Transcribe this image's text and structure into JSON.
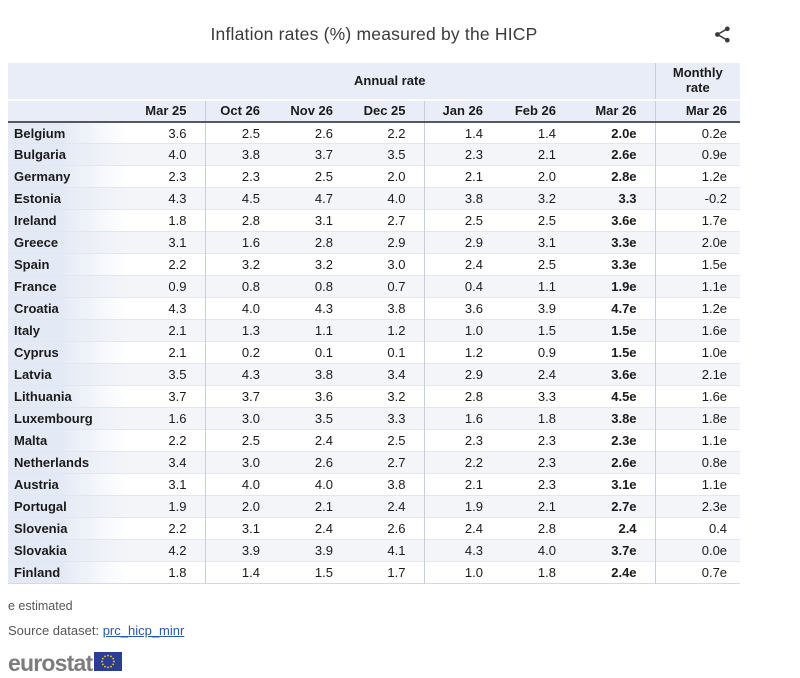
{
  "chart_data": {
    "type": "table",
    "title": "Inflation rates (%) measured by the HICP",
    "annual_group_label": "Annual rate",
    "monthly_group_label": "Monthly rate",
    "columns": [
      "Mar 25",
      "Oct 26",
      "Nov 26",
      "Dec 25",
      "Jan 26",
      "Feb 26",
      "Mar 26"
    ],
    "monthly_column": "Mar 26",
    "rows": [
      {
        "country": "Belgium",
        "values": [
          "3.6",
          "2.5",
          "2.6",
          "2.2",
          "1.4",
          "1.4",
          "2.0e"
        ],
        "monthly": "0.2e"
      },
      {
        "country": "Bulgaria",
        "values": [
          "4.0",
          "3.8",
          "3.7",
          "3.5",
          "2.3",
          "2.1",
          "2.6e"
        ],
        "monthly": "0.9e"
      },
      {
        "country": "Germany",
        "values": [
          "2.3",
          "2.3",
          "2.5",
          "2.0",
          "2.1",
          "2.0",
          "2.8e"
        ],
        "monthly": "1.2e"
      },
      {
        "country": "Estonia",
        "values": [
          "4.3",
          "4.5",
          "4.7",
          "4.0",
          "3.8",
          "3.2",
          "3.3"
        ],
        "monthly": "-0.2"
      },
      {
        "country": "Ireland",
        "values": [
          "1.8",
          "2.8",
          "3.1",
          "2.7",
          "2.5",
          "2.5",
          "3.6e"
        ],
        "monthly": "1.7e"
      },
      {
        "country": "Greece",
        "values": [
          "3.1",
          "1.6",
          "2.8",
          "2.9",
          "2.9",
          "3.1",
          "3.3e"
        ],
        "monthly": "2.0e"
      },
      {
        "country": "Spain",
        "values": [
          "2.2",
          "3.2",
          "3.2",
          "3.0",
          "2.4",
          "2.5",
          "3.3e"
        ],
        "monthly": "1.5e"
      },
      {
        "country": "France",
        "values": [
          "0.9",
          "0.8",
          "0.8",
          "0.7",
          "0.4",
          "1.1",
          "1.9e"
        ],
        "monthly": "1.1e"
      },
      {
        "country": "Croatia",
        "values": [
          "4.3",
          "4.0",
          "4.3",
          "3.8",
          "3.6",
          "3.9",
          "4.7e"
        ],
        "monthly": "1.2e"
      },
      {
        "country": "Italy",
        "values": [
          "2.1",
          "1.3",
          "1.1",
          "1.2",
          "1.0",
          "1.5",
          "1.5e"
        ],
        "monthly": "1.6e"
      },
      {
        "country": "Cyprus",
        "values": [
          "2.1",
          "0.2",
          "0.1",
          "0.1",
          "1.2",
          "0.9",
          "1.5e"
        ],
        "monthly": "1.0e"
      },
      {
        "country": "Latvia",
        "values": [
          "3.5",
          "4.3",
          "3.8",
          "3.4",
          "2.9",
          "2.4",
          "3.6e"
        ],
        "monthly": "2.1e"
      },
      {
        "country": "Lithuania",
        "values": [
          "3.7",
          "3.7",
          "3.6",
          "3.2",
          "2.8",
          "3.3",
          "4.5e"
        ],
        "monthly": "1.6e"
      },
      {
        "country": "Luxembourg",
        "values": [
          "1.6",
          "3.0",
          "3.5",
          "3.3",
          "1.6",
          "1.8",
          "3.8e"
        ],
        "monthly": "1.8e"
      },
      {
        "country": "Malta",
        "values": [
          "2.2",
          "2.5",
          "2.4",
          "2.5",
          "2.3",
          "2.3",
          "2.3e"
        ],
        "monthly": "1.1e"
      },
      {
        "country": "Netherlands",
        "values": [
          "3.4",
          "3.0",
          "2.6",
          "2.7",
          "2.2",
          "2.3",
          "2.6e"
        ],
        "monthly": "0.8e"
      },
      {
        "country": "Austria",
        "values": [
          "3.1",
          "4.0",
          "4.0",
          "3.8",
          "2.1",
          "2.3",
          "3.1e"
        ],
        "monthly": "1.1e"
      },
      {
        "country": "Portugal",
        "values": [
          "1.9",
          "2.0",
          "2.1",
          "2.4",
          "1.9",
          "2.1",
          "2.7e"
        ],
        "monthly": "2.3e"
      },
      {
        "country": "Slovenia",
        "values": [
          "2.2",
          "3.1",
          "2.4",
          "2.6",
          "2.4",
          "2.8",
          "2.4"
        ],
        "monthly": "0.4"
      },
      {
        "country": "Slovakia",
        "values": [
          "4.2",
          "3.9",
          "3.9",
          "4.1",
          "4.3",
          "4.0",
          "3.7e"
        ],
        "monthly": "0.0e"
      },
      {
        "country": "Finland",
        "values": [
          "1.8",
          "1.4",
          "1.5",
          "1.7",
          "1.0",
          "1.8",
          "2.4e"
        ],
        "monthly": "0.7e"
      }
    ]
  },
  "footer": {
    "note": "e estimated",
    "source_label": "Source dataset:",
    "source_link": "prc_hicp_minr",
    "logo_text": "eurostat"
  },
  "icons": {
    "share": "share-icon",
    "eu_flag": "eu-flag-icon"
  },
  "colors": {
    "header_bg": "#e9edf8",
    "stripe_bg": "#f4f5f9",
    "country_cell_bg": "#e4eaf5",
    "header_rule": "#55575e",
    "link": "#2759a8",
    "eu_flag_blue": "#2c3e94",
    "logo_gray": "#7d7d7d"
  }
}
